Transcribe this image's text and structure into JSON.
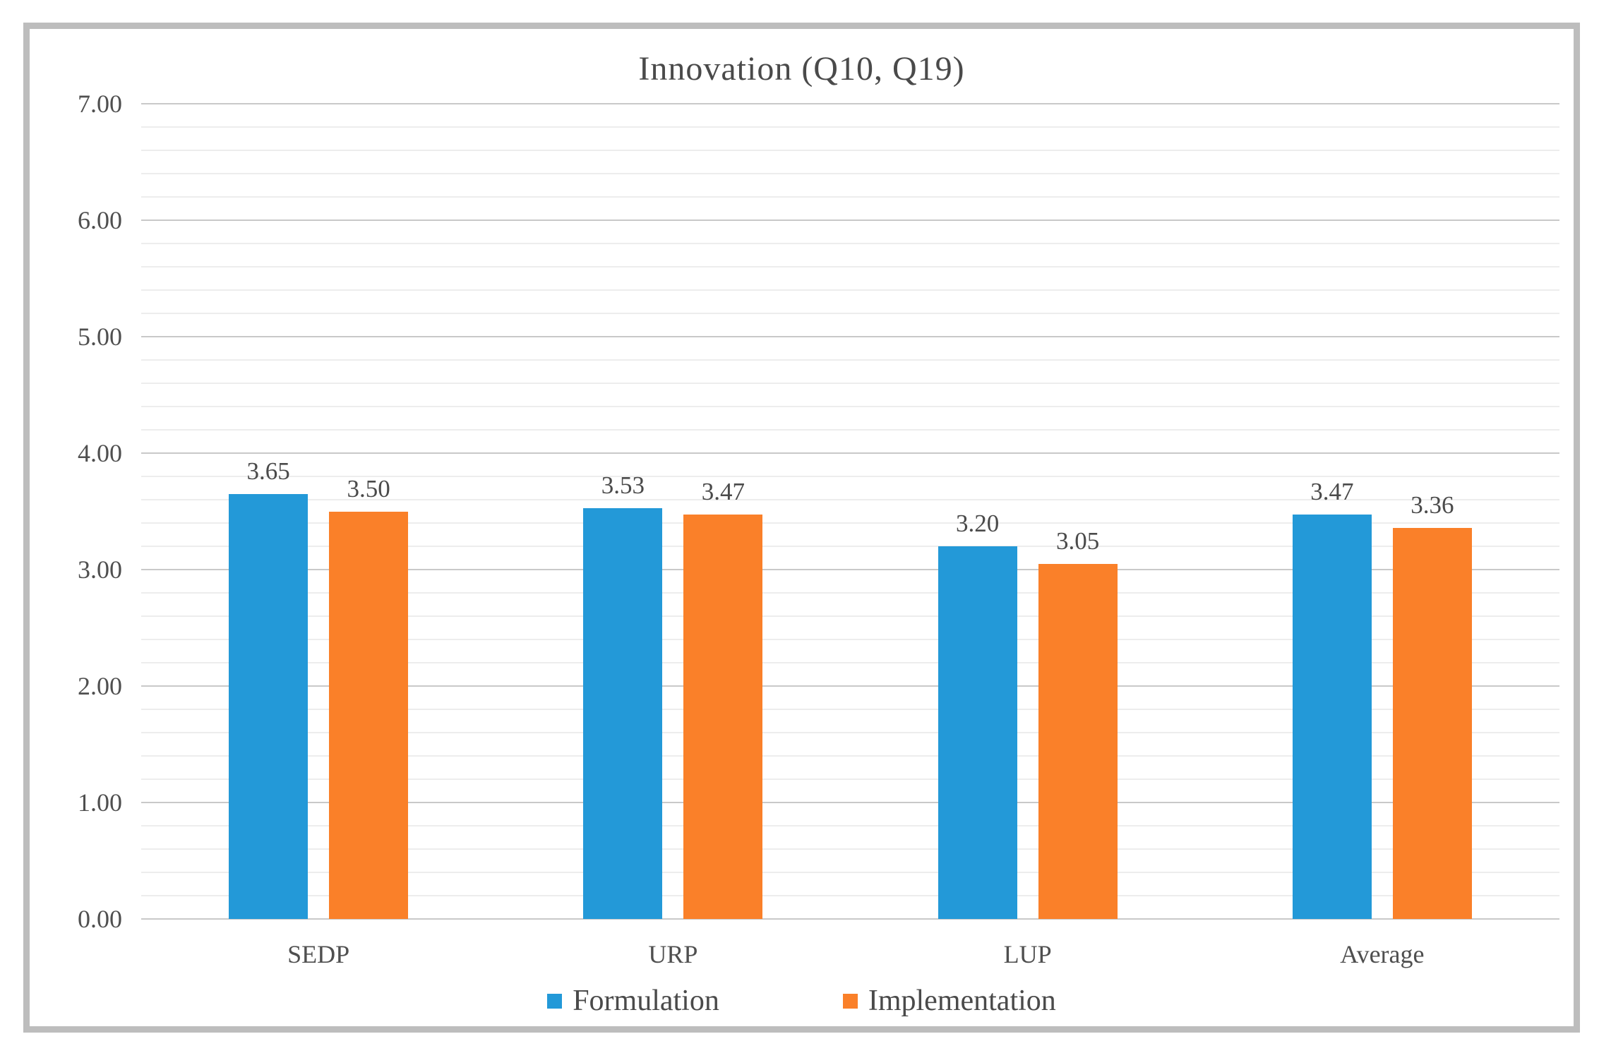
{
  "chart_data": {
    "type": "bar",
    "title": "Innovation (Q10, Q19)",
    "categories": [
      "SEDP",
      "URP",
      "LUP",
      "Average"
    ],
    "series": [
      {
        "name": "Formulation",
        "color": "#2399d8",
        "values": [
          3.65,
          3.53,
          3.2,
          3.47
        ],
        "labels": [
          "3.65",
          "3.53",
          "3.20",
          "3.47"
        ]
      },
      {
        "name": "Implementation",
        "color": "#fa8029",
        "values": [
          3.5,
          3.47,
          3.05,
          3.36
        ],
        "labels": [
          "3.50",
          "3.47",
          "3.05",
          "3.36"
        ]
      }
    ],
    "ylim": [
      0,
      7
    ],
    "ytick_labels": [
      "0.00",
      "1.00",
      "2.00",
      "3.00",
      "4.00",
      "5.00",
      "6.00",
      "7.00"
    ],
    "ymajor_step": 1.0,
    "yminor_step": 0.2,
    "grid": "major and minor horizontal gridlines",
    "legend_position": "bottom center",
    "data_labels": true,
    "colors": {
      "formulation_blue": "#2399d8",
      "implementation_orange": "#fa8029",
      "major_gridline": "#c9c9c9",
      "minor_gridline": "#ededed",
      "frame_border": "#bdbdbd",
      "text": "#4a4a4a"
    }
  }
}
